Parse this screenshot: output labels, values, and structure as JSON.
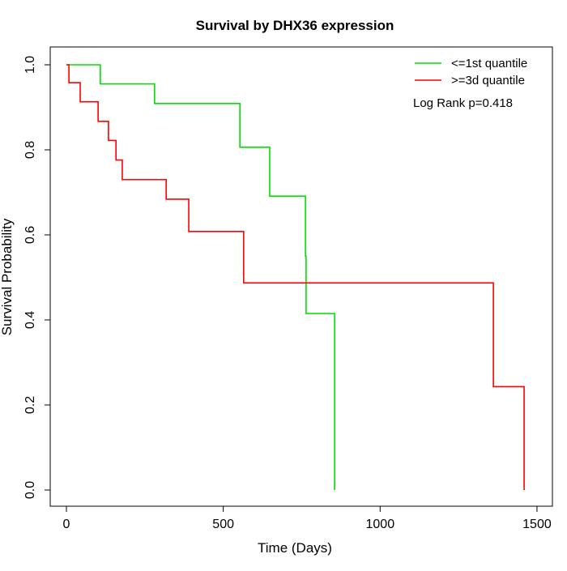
{
  "chart_data": {
    "type": "line",
    "title": "Survival by DHX36 expression",
    "xlabel": "Time (Days)",
    "ylabel": "Survival Probability",
    "xlim": [
      -40,
      1540
    ],
    "ylim": [
      -0.04,
      1.04
    ],
    "xticks": [
      0,
      500,
      1000,
      1500
    ],
    "yticks": [
      0.0,
      0.2,
      0.4,
      0.6,
      0.8,
      1.0
    ],
    "xtick_labels": [
      "0",
      "500",
      "1000",
      "1500"
    ],
    "ytick_labels": [
      "0.0",
      "0.2",
      "0.4",
      "0.6",
      "0.8",
      "1.0"
    ],
    "legend_position": "top-right",
    "annotation": "Log Rank p=0.418",
    "series": [
      {
        "name": "<=1st quantile",
        "color": "#00e000",
        "steps": [
          [
            0,
            1.0
          ],
          [
            108,
            0.955
          ],
          [
            281,
            0.909
          ],
          [
            553,
            0.806
          ],
          [
            648,
            0.691
          ],
          [
            762,
            0.55
          ],
          [
            764,
            0.415
          ],
          [
            855,
            0.0
          ]
        ]
      },
      {
        "name": ">=3d quantile",
        "color": "#ff0000",
        "steps": [
          [
            0,
            1.0
          ],
          [
            8,
            0.958
          ],
          [
            44,
            0.913
          ],
          [
            101,
            0.867
          ],
          [
            134,
            0.822
          ],
          [
            158,
            0.776
          ],
          [
            178,
            0.73
          ],
          [
            318,
            0.684
          ],
          [
            390,
            0.608
          ],
          [
            565,
            0.487
          ],
          [
            1361,
            0.243
          ],
          [
            1459,
            0.0
          ]
        ]
      }
    ]
  }
}
